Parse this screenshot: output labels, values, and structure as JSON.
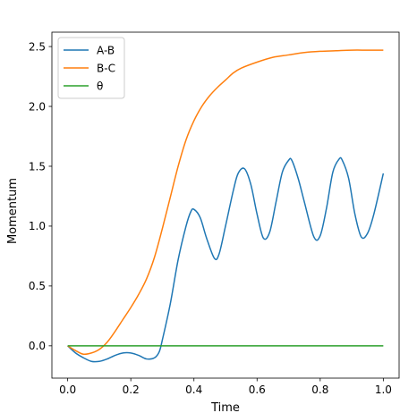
{
  "chart_data": {
    "type": "line",
    "title": "",
    "xlabel": "Time",
    "ylabel": "Momentum",
    "xlim": [
      -0.05,
      1.05
    ],
    "ylim": [
      -0.27,
      2.62
    ],
    "xticks": [
      0.0,
      0.2,
      0.4,
      0.6,
      0.8,
      1.0
    ],
    "xtick_labels": [
      "0.0",
      "0.2",
      "0.4",
      "0.6",
      "0.8",
      "1.0"
    ],
    "yticks": [
      0.0,
      0.5,
      1.0,
      1.5,
      2.0,
      2.5
    ],
    "ytick_labels": [
      "0.0",
      "0.5",
      "1.0",
      "1.5",
      "2.0",
      "2.5"
    ],
    "grid": false,
    "legend_position": "top-left",
    "series": [
      {
        "name": "A-B",
        "color": "#1f77b4",
        "x": [
          0.0,
          0.025,
          0.05,
          0.075,
          0.1,
          0.125,
          0.15,
          0.175,
          0.2,
          0.225,
          0.25,
          0.275,
          0.29,
          0.3,
          0.325,
          0.35,
          0.375,
          0.39,
          0.4,
          0.42,
          0.44,
          0.465,
          0.48,
          0.5,
          0.525,
          0.54,
          0.56,
          0.58,
          0.6,
          0.62,
          0.64,
          0.66,
          0.68,
          0.7,
          0.71,
          0.73,
          0.75,
          0.78,
          0.8,
          0.82,
          0.84,
          0.86,
          0.87,
          0.89,
          0.91,
          0.93,
          0.95,
          0.97,
          1.0
        ],
        "y": [
          0.0,
          -0.06,
          -0.1,
          -0.13,
          -0.13,
          -0.11,
          -0.08,
          -0.06,
          -0.06,
          -0.08,
          -0.11,
          -0.1,
          -0.05,
          0.05,
          0.35,
          0.72,
          1.0,
          1.12,
          1.14,
          1.07,
          0.9,
          0.73,
          0.77,
          1.0,
          1.3,
          1.44,
          1.48,
          1.35,
          1.1,
          0.9,
          0.95,
          1.2,
          1.45,
          1.55,
          1.55,
          1.4,
          1.2,
          0.91,
          0.92,
          1.15,
          1.45,
          1.56,
          1.55,
          1.4,
          1.1,
          0.91,
          0.94,
          1.1,
          1.44
        ]
      },
      {
        "name": "B-C",
        "color": "#ff7f0e",
        "x": [
          0.0,
          0.025,
          0.05,
          0.075,
          0.1,
          0.125,
          0.15,
          0.175,
          0.2,
          0.225,
          0.25,
          0.275,
          0.3,
          0.325,
          0.35,
          0.375,
          0.4,
          0.425,
          0.45,
          0.475,
          0.5,
          0.525,
          0.55,
          0.6,
          0.65,
          0.7,
          0.75,
          0.8,
          0.85,
          0.9,
          0.95,
          1.0
        ],
        "y": [
          0.0,
          -0.04,
          -0.07,
          -0.06,
          -0.03,
          0.03,
          0.12,
          0.22,
          0.32,
          0.43,
          0.56,
          0.74,
          0.98,
          1.24,
          1.5,
          1.72,
          1.88,
          2.0,
          2.09,
          2.16,
          2.22,
          2.28,
          2.32,
          2.37,
          2.41,
          2.43,
          2.45,
          2.46,
          2.465,
          2.47,
          2.47,
          2.47
        ]
      },
      {
        "name": "θ",
        "color": "#2ca02c",
        "x": [
          0.0,
          1.0
        ],
        "y": [
          0.0,
          0.0
        ]
      }
    ]
  }
}
